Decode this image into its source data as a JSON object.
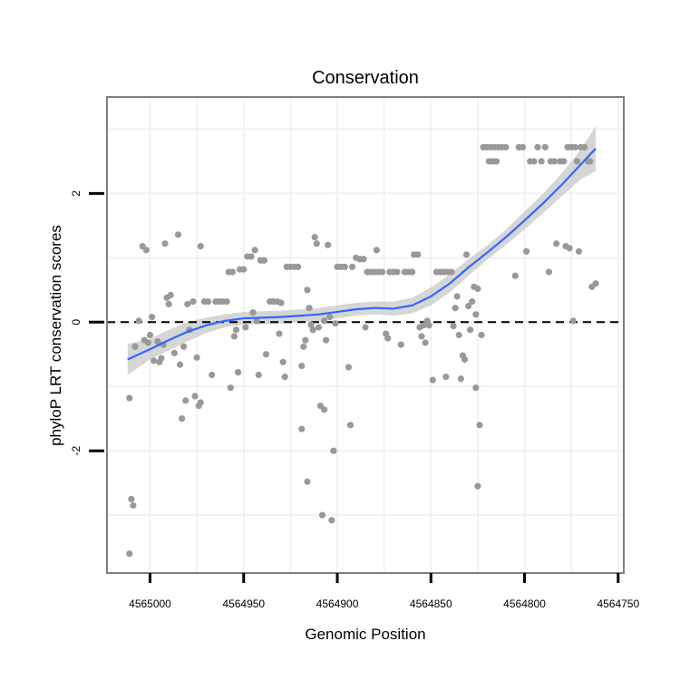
{
  "chart_data": {
    "type": "scatter",
    "title": "Conservation",
    "xlabel": "Genomic Position",
    "ylabel": "phyloP LRT conservation scores",
    "xlim": [
      4565023,
      4564747
    ],
    "x_reversed": true,
    "ylim": [
      -3.9,
      3.5
    ],
    "x_ticks": [
      4565000,
      4564950,
      4564900,
      4564850,
      4564800,
      4564750
    ],
    "y_ticks": [
      -2,
      0,
      2
    ],
    "grid": true,
    "reference_line": {
      "y": 0,
      "style": "dashed"
    },
    "colors": {
      "points": "#999999",
      "smooth_line": "#3366ff",
      "ribbon": "#c8c8c8",
      "panel_border": "#7f7f7f",
      "grid": "#f2f2f2"
    },
    "series": [
      {
        "type": "points",
        "points": [
          [
            4565011,
            -1.18
          ],
          [
            4565010,
            -2.75
          ],
          [
            4565009,
            -2.85
          ],
          [
            4565011,
            -3.6
          ],
          [
            4565008,
            -0.38
          ],
          [
            4565006,
            0.02
          ],
          [
            4565004,
            1.18
          ],
          [
            4565002,
            1.12
          ],
          [
            4565003,
            -0.28
          ],
          [
            4565001,
            -0.32
          ],
          [
            4565000,
            -0.2
          ],
          [
            4564999,
            0.08
          ],
          [
            4564998,
            -0.6
          ],
          [
            4564996,
            -0.3
          ],
          [
            4564995,
            -0.62
          ],
          [
            4564994,
            -0.56
          ],
          [
            4564993,
            -0.35
          ],
          [
            4564992,
            1.22
          ],
          [
            4564991,
            0.38
          ],
          [
            4564990,
            0.28
          ],
          [
            4564989,
            0.42
          ],
          [
            4564987,
            -0.48
          ],
          [
            4564985,
            1.36
          ],
          [
            4564984,
            -0.66
          ],
          [
            4564983,
            -1.5
          ],
          [
            4564982,
            -0.38
          ],
          [
            4564981,
            -1.22
          ],
          [
            4564980,
            0.28
          ],
          [
            4564979,
            -0.12
          ],
          [
            4564977,
            0.32
          ],
          [
            4564976,
            -1.15
          ],
          [
            4564975,
            -0.55
          ],
          [
            4564974,
            -1.3
          ],
          [
            4564973,
            -1.25
          ],
          [
            4564973,
            1.18
          ],
          [
            4564971,
            0.32
          ],
          [
            4564969,
            0.32
          ],
          [
            4564967,
            -0.82
          ],
          [
            4564965,
            0.32
          ],
          [
            4564963,
            0.32
          ],
          [
            4564961,
            0.32
          ],
          [
            4564959,
            0.32
          ],
          [
            4564957,
            -1.02
          ],
          [
            4564958,
            0.78
          ],
          [
            4564956,
            0.78
          ],
          [
            4564955,
            -0.22
          ],
          [
            4564954,
            -0.12
          ],
          [
            4564953,
            -0.78
          ],
          [
            4564952,
            0.82
          ],
          [
            4564950,
            0.82
          ],
          [
            4564949,
            -0.08
          ],
          [
            4564948,
            1.02
          ],
          [
            4564946,
            1.02
          ],
          [
            4564945,
            0.15
          ],
          [
            4564944,
            1.12
          ],
          [
            4564943,
            0.02
          ],
          [
            4564942,
            -0.82
          ],
          [
            4564941,
            0.96
          ],
          [
            4564940,
            0.96
          ],
          [
            4564939,
            0.96
          ],
          [
            4564938,
            -0.5
          ],
          [
            4564936,
            0.32
          ],
          [
            4564934,
            0.32
          ],
          [
            4564932,
            0.32
          ],
          [
            4564931,
            -0.18
          ],
          [
            4564930,
            0.3
          ],
          [
            4564929,
            -0.62
          ],
          [
            4564928,
            -0.85
          ],
          [
            4564927,
            0.86
          ],
          [
            4564925,
            0.86
          ],
          [
            4564923,
            0.86
          ],
          [
            4564921,
            0.86
          ],
          [
            4564919,
            -0.68
          ],
          [
            4564919,
            -1.66
          ],
          [
            4564918,
            -0.38
          ],
          [
            4564917,
            -0.28
          ],
          [
            4564916,
            -2.48
          ],
          [
            4564916,
            0.5
          ],
          [
            4564915,
            0.22
          ],
          [
            4564914,
            -0.04
          ],
          [
            4564913,
            -0.12
          ],
          [
            4564912,
            1.32
          ],
          [
            4564911,
            1.22
          ],
          [
            4564910,
            -0.08
          ],
          [
            4564909,
            -1.3
          ],
          [
            4564908,
            -3.0
          ],
          [
            4564907,
            -1.36
          ],
          [
            4564907,
            0.02
          ],
          [
            4564906,
            -0.28
          ],
          [
            4564905,
            1.2
          ],
          [
            4564904,
            0.08
          ],
          [
            4564903,
            -3.08
          ],
          [
            4564902,
            -2.0
          ],
          [
            4564901,
            -0.02
          ],
          [
            4564900,
            0.86
          ],
          [
            4564898,
            0.86
          ],
          [
            4564896,
            0.86
          ],
          [
            4564894,
            -0.7
          ],
          [
            4564893,
            -1.6
          ],
          [
            4564892,
            0.86
          ],
          [
            4564890,
            1.0
          ],
          [
            4564888,
            0.98
          ],
          [
            4564886,
            0.98
          ],
          [
            4564885,
            -0.08
          ],
          [
            4564884,
            0.78
          ],
          [
            4564882,
            0.78
          ],
          [
            4564880,
            0.78
          ],
          [
            4564879,
            1.12
          ],
          [
            4564878,
            0.78
          ],
          [
            4564876,
            0.78
          ],
          [
            4564874,
            -0.18
          ],
          [
            4564873,
            -0.25
          ],
          [
            4564872,
            0.78
          ],
          [
            4564870,
            0.78
          ],
          [
            4564868,
            0.78
          ],
          [
            4564866,
            -0.35
          ],
          [
            4564864,
            0.78
          ],
          [
            4564862,
            0.78
          ],
          [
            4564860,
            0.78
          ],
          [
            4564859,
            1.05
          ],
          [
            4564857,
            1.05
          ],
          [
            4564856,
            -0.08
          ],
          [
            4564855,
            -0.22
          ],
          [
            4564854,
            -0.05
          ],
          [
            4564853,
            -0.32
          ],
          [
            4564852,
            0.02
          ],
          [
            4564851,
            -0.05
          ],
          [
            4564849,
            -0.9
          ],
          [
            4564847,
            0.78
          ],
          [
            4564845,
            0.78
          ],
          [
            4564843,
            0.78
          ],
          [
            4564842,
            -0.85
          ],
          [
            4564841,
            0.78
          ],
          [
            4564839,
            0.78
          ],
          [
            4564838,
            -0.06
          ],
          [
            4564837,
            0.22
          ],
          [
            4564836,
            0.4
          ],
          [
            4564835,
            -0.2
          ],
          [
            4564834,
            -0.88
          ],
          [
            4564833,
            -0.52
          ],
          [
            4564832,
            -0.58
          ],
          [
            4564831,
            1.05
          ],
          [
            4564830,
            0.25
          ],
          [
            4564829,
            -0.12
          ],
          [
            4564828,
            0.32
          ],
          [
            4564827,
            0.55
          ],
          [
            4564826,
            -1.02
          ],
          [
            4564825,
            0.52
          ],
          [
            4564824,
            -1.6
          ],
          [
            4564825,
            -2.55
          ],
          [
            4564826,
            0.12
          ],
          [
            4564823,
            -0.2
          ],
          [
            4564822,
            2.72
          ],
          [
            4564820,
            2.72
          ],
          [
            4564818,
            2.72
          ],
          [
            4564816,
            2.72
          ],
          [
            4564819,
            2.5
          ],
          [
            4564817,
            2.5
          ],
          [
            4564815,
            2.5
          ],
          [
            4564814,
            2.72
          ],
          [
            4564812,
            2.72
          ],
          [
            4564810,
            2.72
          ],
          [
            4564805,
            0.72
          ],
          [
            4564803,
            2.72
          ],
          [
            4564801,
            2.72
          ],
          [
            4564799,
            1.1
          ],
          [
            4564797,
            2.5
          ],
          [
            4564795,
            2.5
          ],
          [
            4564793,
            2.72
          ],
          [
            4564791,
            2.5
          ],
          [
            4564789,
            2.72
          ],
          [
            4564787,
            0.78
          ],
          [
            4564786,
            2.5
          ],
          [
            4564784,
            2.5
          ],
          [
            4564783,
            1.22
          ],
          [
            4564781,
            2.5
          ],
          [
            4564779,
            2.5
          ],
          [
            4564778,
            1.18
          ],
          [
            4564777,
            2.72
          ],
          [
            4564776,
            1.15
          ],
          [
            4564775,
            2.72
          ],
          [
            4564774,
            0.02
          ],
          [
            4564773,
            2.72
          ],
          [
            4564772,
            2.5
          ],
          [
            4564771,
            1.1
          ],
          [
            4564770,
            2.72
          ],
          [
            4564768,
            2.72
          ],
          [
            4564766,
            2.5
          ],
          [
            4564765,
            2.5
          ],
          [
            4564764,
            0.55
          ],
          [
            4564762,
            0.6
          ]
        ]
      },
      {
        "type": "smooth",
        "points": [
          [
            4565012,
            -0.58
          ],
          [
            4565000,
            -0.42
          ],
          [
            4564990,
            -0.28
          ],
          [
            4564980,
            -0.15
          ],
          [
            4564970,
            -0.05
          ],
          [
            4564960,
            0.02
          ],
          [
            4564950,
            0.06
          ],
          [
            4564940,
            0.07
          ],
          [
            4564930,
            0.08
          ],
          [
            4564920,
            0.1
          ],
          [
            4564910,
            0.12
          ],
          [
            4564900,
            0.16
          ],
          [
            4564890,
            0.2
          ],
          [
            4564880,
            0.22
          ],
          [
            4564870,
            0.21
          ],
          [
            4564860,
            0.26
          ],
          [
            4564850,
            0.4
          ],
          [
            4564840,
            0.6
          ],
          [
            4564830,
            0.85
          ],
          [
            4564820,
            1.08
          ],
          [
            4564810,
            1.32
          ],
          [
            4564800,
            1.58
          ],
          [
            4564790,
            1.85
          ],
          [
            4564780,
            2.14
          ],
          [
            4564770,
            2.45
          ],
          [
            4564762,
            2.7
          ]
        ],
        "ci_low": [
          -0.82,
          -0.58,
          -0.44,
          -0.3,
          -0.17,
          -0.08,
          -0.04,
          -0.03,
          -0.02,
          0.0,
          0.02,
          0.06,
          0.1,
          0.12,
          0.1,
          0.14,
          0.26,
          0.46,
          0.72,
          0.97,
          1.2,
          1.44,
          1.7,
          1.96,
          2.22,
          2.35
        ],
        "ci_high": [
          -0.34,
          -0.26,
          -0.12,
          0.0,
          0.07,
          0.12,
          0.16,
          0.17,
          0.18,
          0.2,
          0.22,
          0.26,
          0.3,
          0.32,
          0.32,
          0.38,
          0.54,
          0.74,
          0.98,
          1.19,
          1.44,
          1.72,
          2.0,
          2.32,
          2.68,
          3.05
        ]
      }
    ]
  }
}
